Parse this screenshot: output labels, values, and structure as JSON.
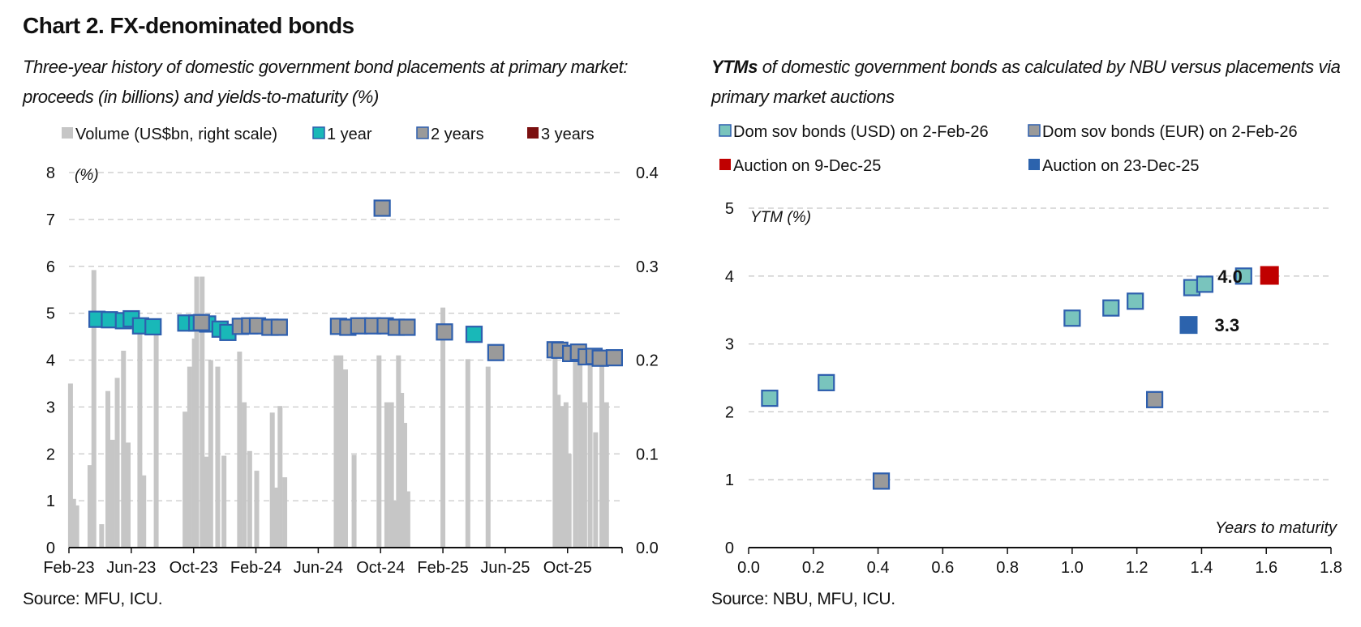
{
  "title": "Chart 2. FX-denominated bonds",
  "colors": {
    "volume": "#c6c6c6",
    "one_year": "#19b8b8",
    "two_years": "#9a9a9a",
    "three_years": "#7b1010",
    "marker_border": "#2e5fae",
    "usd_bonds": "#79c4bd",
    "eur_bonds": "#9a9a9a",
    "auction_9dec": "#c00000",
    "auction_23dec": "#2c63ad",
    "grid": "#c8c8c8"
  },
  "chart_data": [
    {
      "type": "bar",
      "subtitle": "Three-year history of domestic government bond placements at primary market: proceeds (in billions) and yields-to-maturity (%)",
      "source": "Source: MFU, ICU.",
      "y_unit_label": "(%)",
      "ylim": [
        0,
        8
      ],
      "yticks": [
        "0",
        "1",
        "2",
        "3",
        "4",
        "5",
        "6",
        "7",
        "8"
      ],
      "y2lim": [
        0,
        0.4
      ],
      "y2ticks": [
        "0.0",
        "0.1",
        "0.2",
        "0.3",
        "0.4"
      ],
      "xlim": [
        0,
        35.5
      ],
      "x_tick_labels": [
        "Feb-23",
        "Jun-23",
        "Oct-23",
        "Feb-24",
        "Jun-24",
        "Oct-24",
        "Feb-25",
        "Jun-25",
        "Oct-25"
      ],
      "x_tick_months": [
        0,
        4,
        8,
        12,
        16,
        20,
        24,
        28,
        32
      ],
      "grid": true,
      "legend": [
        "Volume (US$bn, right scale)",
        "1 year",
        "2 years",
        "3 years"
      ],
      "legend_position": "top",
      "volume_series": {
        "name": "Volume (US$bn, right scale)",
        "bars": [
          {
            "month": 0.1,
            "value": 0.175
          },
          {
            "month": 0.3,
            "value": 0.052
          },
          {
            "month": 0.5,
            "value": 0.045
          },
          {
            "month": 1.35,
            "value": 0.088
          },
          {
            "month": 1.6,
            "value": 0.296
          },
          {
            "month": 2.1,
            "value": 0.025
          },
          {
            "month": 2.5,
            "value": 0.167
          },
          {
            "month": 2.8,
            "value": 0.115
          },
          {
            "month": 3.1,
            "value": 0.181
          },
          {
            "month": 3.5,
            "value": 0.21
          },
          {
            "month": 3.8,
            "value": 0.112
          },
          {
            "month": 4.55,
            "value": 0.24
          },
          {
            "month": 4.8,
            "value": 0.077
          },
          {
            "month": 5.6,
            "value": 0.24
          },
          {
            "month": 7.45,
            "value": 0.145
          },
          {
            "month": 7.75,
            "value": 0.193
          },
          {
            "month": 8.05,
            "value": 0.223
          },
          {
            "month": 8.2,
            "value": 0.289
          },
          {
            "month": 8.55,
            "value": 0.289
          },
          {
            "month": 8.8,
            "value": 0.097
          },
          {
            "month": 9.1,
            "value": 0.2
          },
          {
            "month": 9.55,
            "value": 0.193
          },
          {
            "month": 9.95,
            "value": 0.098
          },
          {
            "month": 10.95,
            "value": 0.209
          },
          {
            "month": 11.25,
            "value": 0.155
          },
          {
            "month": 11.6,
            "value": 0.103
          },
          {
            "month": 12.05,
            "value": 0.082
          },
          {
            "month": 13.05,
            "value": 0.144
          },
          {
            "month": 13.3,
            "value": 0.064
          },
          {
            "month": 13.55,
            "value": 0.151
          },
          {
            "month": 13.85,
            "value": 0.075
          },
          {
            "month": 17.15,
            "value": 0.205
          },
          {
            "month": 17.45,
            "value": 0.205
          },
          {
            "month": 17.75,
            "value": 0.19
          },
          {
            "month": 18.3,
            "value": 0.099
          },
          {
            "month": 19.9,
            "value": 0.205
          },
          {
            "month": 20.4,
            "value": 0.155
          },
          {
            "month": 20.7,
            "value": 0.155
          },
          {
            "month": 20.95,
            "value": 0.05
          },
          {
            "month": 21.15,
            "value": 0.205
          },
          {
            "month": 21.35,
            "value": 0.165
          },
          {
            "month": 21.55,
            "value": 0.133
          },
          {
            "month": 21.75,
            "value": 0.06
          },
          {
            "month": 24.0,
            "value": 0.256
          },
          {
            "month": 25.6,
            "value": 0.201
          },
          {
            "month": 26.9,
            "value": 0.193
          },
          {
            "month": 31.2,
            "value": 0.205
          },
          {
            "month": 31.4,
            "value": 0.163
          },
          {
            "month": 31.65,
            "value": 0.151
          },
          {
            "month": 31.9,
            "value": 0.155
          },
          {
            "month": 32.1,
            "value": 0.1
          },
          {
            "month": 32.5,
            "value": 0.211
          },
          {
            "month": 32.8,
            "value": 0.211
          },
          {
            "month": 33.1,
            "value": 0.155
          },
          {
            "month": 33.45,
            "value": 0.2
          },
          {
            "month": 33.8,
            "value": 0.123
          },
          {
            "month": 34.2,
            "value": 0.205
          },
          {
            "month": 34.5,
            "value": 0.155
          }
        ]
      },
      "yield_series": [
        {
          "name": "1 year",
          "points": [
            {
              "month": 1.8,
              "y": 4.87
            },
            {
              "month": 2.6,
              "y": 4.86
            },
            {
              "month": 3.5,
              "y": 4.84
            },
            {
              "month": 4.0,
              "y": 4.88
            },
            {
              "month": 4.6,
              "y": 4.73
            },
            {
              "month": 5.4,
              "y": 4.71
            },
            {
              "month": 7.5,
              "y": 4.79
            },
            {
              "month": 8.2,
              "y": 4.79
            },
            {
              "month": 8.9,
              "y": 4.77
            },
            {
              "month": 9.7,
              "y": 4.66
            },
            {
              "month": 10.2,
              "y": 4.59
            },
            {
              "month": 26.0,
              "y": 4.55
            }
          ]
        },
        {
          "name": "2 years",
          "points": [
            {
              "month": 8.5,
              "y": 4.8
            },
            {
              "month": 11.0,
              "y": 4.72
            },
            {
              "month": 11.6,
              "y": 4.73
            },
            {
              "month": 12.1,
              "y": 4.73
            },
            {
              "month": 12.9,
              "y": 4.7
            },
            {
              "month": 13.5,
              "y": 4.7
            },
            {
              "month": 17.3,
              "y": 4.72
            },
            {
              "month": 17.9,
              "y": 4.7
            },
            {
              "month": 18.6,
              "y": 4.73
            },
            {
              "month": 19.5,
              "y": 4.73
            },
            {
              "month": 20.3,
              "y": 4.73
            },
            {
              "month": 21.0,
              "y": 4.7
            },
            {
              "month": 21.7,
              "y": 4.7
            },
            {
              "month": 20.1,
              "y": 7.24
            },
            {
              "month": 24.1,
              "y": 4.6
            },
            {
              "month": 27.4,
              "y": 4.16
            },
            {
              "month": 31.2,
              "y": 4.22
            },
            {
              "month": 31.5,
              "y": 4.21
            },
            {
              "month": 32.2,
              "y": 4.14
            },
            {
              "month": 32.7,
              "y": 4.17
            },
            {
              "month": 33.2,
              "y": 4.07
            },
            {
              "month": 33.7,
              "y": 4.08
            },
            {
              "month": 34.1,
              "y": 4.04
            },
            {
              "month": 35.0,
              "y": 4.05
            }
          ]
        },
        {
          "name": "3 years",
          "points": []
        }
      ]
    },
    {
      "type": "scatter",
      "subtitle_bold": "YTMs",
      "subtitle": " of domestic government bonds as calculated by NBU versus placements via primary market auctions",
      "source": "Source: NBU, MFU, ICU.",
      "xlabel": "Years to maturity",
      "ylabel": "YTM (%)",
      "xlim": [
        0,
        1.8
      ],
      "ylim": [
        0,
        5
      ],
      "xticks": [
        "0.0",
        "0.2",
        "0.4",
        "0.6",
        "0.8",
        "1.0",
        "1.2",
        "1.4",
        "1.6",
        "1.8"
      ],
      "yticks": [
        "0",
        "1",
        "2",
        "3",
        "4",
        "5"
      ],
      "grid": true,
      "legend": [
        "Dom sov bonds (USD) on 2-Feb-26",
        "Dom sov bonds (EUR) on 2-Feb-26",
        "Auction on 9-Dec-25",
        "Auction on 23-Dec-25"
      ],
      "legend_position": "top",
      "series": [
        {
          "name": "Dom sov bonds (USD) on 2-Feb-26",
          "points": [
            {
              "x": 0.065,
              "y": 2.2
            },
            {
              "x": 0.24,
              "y": 2.43
            },
            {
              "x": 1.0,
              "y": 3.38
            },
            {
              "x": 1.12,
              "y": 3.53
            },
            {
              "x": 1.195,
              "y": 3.63
            },
            {
              "x": 1.37,
              "y": 3.83
            },
            {
              "x": 1.41,
              "y": 3.88
            },
            {
              "x": 1.53,
              "y": 4.0
            }
          ]
        },
        {
          "name": "Dom sov bonds (EUR) on 2-Feb-26",
          "points": [
            {
              "x": 0.41,
              "y": 0.98
            },
            {
              "x": 1.255,
              "y": 2.18
            }
          ]
        },
        {
          "name": "Auction on 9-Dec-25",
          "points": [
            {
              "x": 1.61,
              "y": 4.01
            }
          ]
        },
        {
          "name": "Auction on 23-Dec-25",
          "points": [
            {
              "x": 1.36,
              "y": 3.28
            }
          ]
        }
      ],
      "data_labels": [
        {
          "text": "4.0",
          "x": 1.53,
          "y": 4.0
        },
        {
          "text": "3.3",
          "x": 1.36,
          "y": 3.28
        }
      ]
    }
  ]
}
